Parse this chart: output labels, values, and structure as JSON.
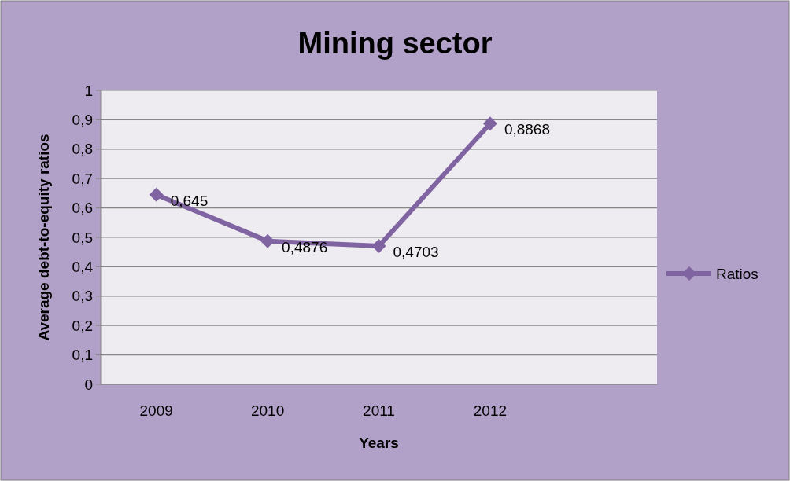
{
  "chart_data": {
    "type": "line",
    "title": "Mining sector",
    "xlabel": "Years",
    "ylabel": "Average debt-to-equity ratios",
    "categories": [
      "2009",
      "2010",
      "2011",
      "2012",
      null
    ],
    "series": [
      {
        "name": "Ratios",
        "color": "#8064a2",
        "values": [
          0.645,
          0.4876,
          0.4703,
          0.8868,
          null
        ],
        "value_labels": [
          "0,645",
          "0,4876",
          "0,4703",
          "0,8868",
          null
        ]
      }
    ],
    "ylim": [
      0,
      1
    ],
    "yticks": [
      {
        "value": 0,
        "label": "0"
      },
      {
        "value": 0.1,
        "label": "0,1"
      },
      {
        "value": 0.2,
        "label": "0,2"
      },
      {
        "value": 0.3,
        "label": "0,3"
      },
      {
        "value": 0.4,
        "label": "0,4"
      },
      {
        "value": 0.5,
        "label": "0,5"
      },
      {
        "value": 0.6,
        "label": "0,6"
      },
      {
        "value": 0.7,
        "label": "0,7"
      },
      {
        "value": 0.8,
        "label": "0,8"
      },
      {
        "value": 0.9,
        "label": "0,9"
      },
      {
        "value": 1,
        "label": "1"
      }
    ],
    "grid": "y",
    "legend": "right",
    "marker": "diamond",
    "line_style": "solid"
  }
}
